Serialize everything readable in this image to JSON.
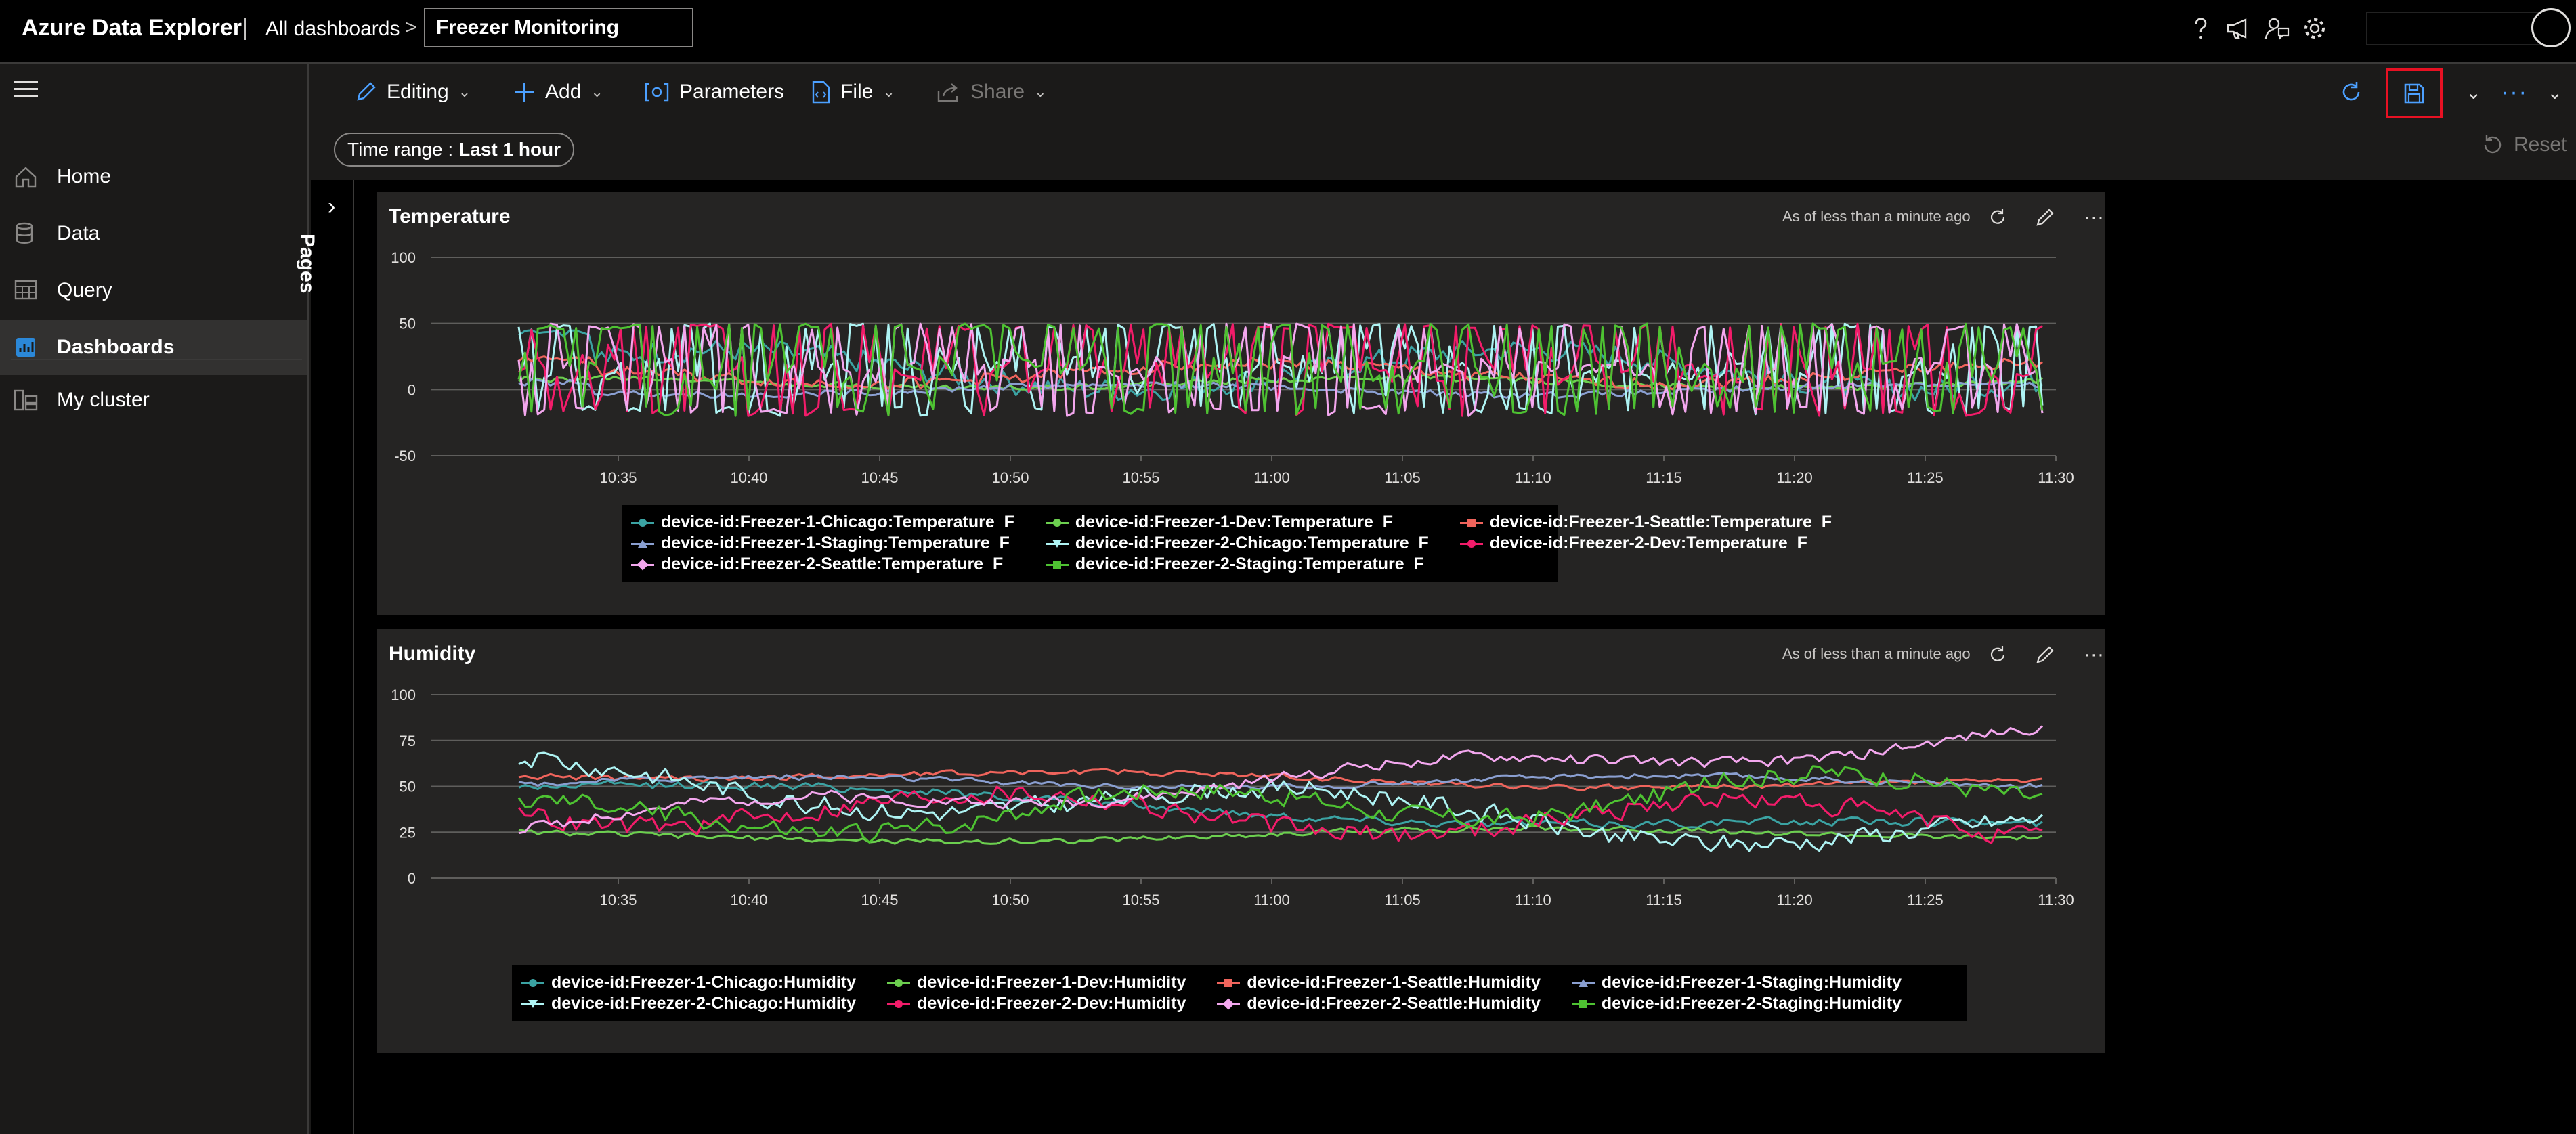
{
  "app": {
    "brand": "Azure Data Explorer",
    "separator": "|",
    "breadcrumb": "All dashboards",
    "dashboard_title": "Freezer Monitoring"
  },
  "top_icons": [
    "help-icon",
    "megaphone-icon",
    "feedback-icon",
    "settings-icon"
  ],
  "sidebar": {
    "items": [
      {
        "label": "Home",
        "icon": "home-icon"
      },
      {
        "label": "Data",
        "icon": "data-icon"
      },
      {
        "label": "Query",
        "icon": "query-icon"
      },
      {
        "label": "Dashboards",
        "icon": "dashboards-icon",
        "active": true
      },
      {
        "label": "My cluster",
        "icon": "cluster-icon"
      }
    ]
  },
  "toolbar": {
    "editing": "Editing",
    "add": "Add",
    "parameters": "Parameters",
    "file": "File",
    "share": "Share",
    "reset": "Reset"
  },
  "filter": {
    "time_range_label": "Time range :",
    "time_range_value": "Last 1 hour"
  },
  "pages_label": "Pages",
  "colors": {
    "teal": "#3ba3a3",
    "green": "#6ccf4f",
    "salmon": "#f0645c",
    "slate": "#8a9fd1",
    "cyan": "#aef3f3",
    "pink": "#f21c6a",
    "lavender": "#f3a7ee",
    "lime": "#4ec232"
  },
  "tiles": [
    {
      "title": "Temperature",
      "meta": "As of less than a minute ago",
      "chart_data": {
        "type": "line",
        "y_ticks": [
          "100",
          "50",
          "0",
          "-50"
        ],
        "ylim": [
          -50,
          100
        ],
        "x_ticks": [
          "10:35",
          "10:40",
          "10:45",
          "10:50",
          "10:55",
          "11:00",
          "11:05",
          "11:10",
          "11:15",
          "11:20",
          "11:25",
          "11:30"
        ],
        "series": [
          {
            "name": "device-id:Freezer-1-Chicago:Temperature_F",
            "color": "#3ba3a3",
            "marker": "circle",
            "min": -15,
            "max": 45,
            "base": 15,
            "kind": "flat"
          },
          {
            "name": "device-id:Freezer-1-Dev:Temperature_F",
            "color": "#6ccf4f",
            "marker": "circle",
            "min": -5,
            "max": 10,
            "base": 5,
            "kind": "flat"
          },
          {
            "name": "device-id:Freezer-1-Seattle:Temperature_F",
            "color": "#f0645c",
            "marker": "square",
            "min": -5,
            "max": 25,
            "base": 12,
            "kind": "flat"
          },
          {
            "name": "device-id:Freezer-1-Staging:Temperature_F",
            "color": "#8a9fd1",
            "marker": "triangle",
            "min": -8,
            "max": 8,
            "base": 0,
            "kind": "flat"
          },
          {
            "name": "device-id:Freezer-2-Chicago:Temperature_F",
            "color": "#aef3f3",
            "marker": "tri-down",
            "min": -20,
            "max": 50,
            "base": 15,
            "kind": "noisy"
          },
          {
            "name": "device-id:Freezer-2-Dev:Temperature_F",
            "color": "#f21c6a",
            "marker": "circle",
            "min": -20,
            "max": 50,
            "base": 15,
            "kind": "noisy"
          },
          {
            "name": "device-id:Freezer-2-Seattle:Temperature_F",
            "color": "#f3a7ee",
            "marker": "diamond",
            "min": -20,
            "max": 50,
            "base": 15,
            "kind": "noisy"
          },
          {
            "name": "device-id:Freezer-2-Staging:Temperature_F",
            "color": "#4ec232",
            "marker": "square",
            "min": -20,
            "max": 50,
            "base": 15,
            "kind": "noisy"
          }
        ]
      }
    },
    {
      "title": "Humidity",
      "meta": "As of less than a minute ago",
      "chart_data": {
        "type": "line",
        "y_ticks": [
          "100",
          "75",
          "50",
          "25",
          "0"
        ],
        "ylim": [
          0,
          100
        ],
        "x_ticks": [
          "10:35",
          "10:40",
          "10:45",
          "10:50",
          "10:55",
          "11:00",
          "11:05",
          "11:10",
          "11:15",
          "11:20",
          "11:25",
          "11:30"
        ],
        "series": [
          {
            "name": "device-id:Freezer-1-Chicago:Humidity",
            "color": "#3ba3a3",
            "marker": "circle",
            "start": 50,
            "end": 25,
            "noise": 3
          },
          {
            "name": "device-id:Freezer-1-Dev:Humidity",
            "color": "#6ccf4f",
            "marker": "circle",
            "start": 22,
            "end": 25,
            "noise": 2
          },
          {
            "name": "device-id:Freezer-1-Seattle:Humidity",
            "color": "#f0645c",
            "marker": "square",
            "start": 58,
            "end": 50,
            "noise": 2
          },
          {
            "name": "device-id:Freezer-1-Staging:Humidity",
            "color": "#8a9fd1",
            "marker": "triangle",
            "start": 52,
            "end": 53,
            "noise": 2
          },
          {
            "name": "device-id:Freezer-2-Chicago:Humidity",
            "color": "#aef3f3",
            "marker": "tri-down",
            "start": 55,
            "end": 22,
            "noise": 7
          },
          {
            "name": "device-id:Freezer-2-Dev:Humidity",
            "color": "#f21c6a",
            "marker": "circle",
            "start": 40,
            "end": 30,
            "noise": 7
          },
          {
            "name": "device-id:Freezer-2-Seattle:Humidity",
            "color": "#f3a7ee",
            "marker": "diamond",
            "start": 30,
            "end": 78,
            "noise": 4
          },
          {
            "name": "device-id:Freezer-2-Staging:Humidity",
            "color": "#4ec232",
            "marker": "square",
            "start": 30,
            "end": 50,
            "noise": 7
          }
        ]
      }
    }
  ]
}
